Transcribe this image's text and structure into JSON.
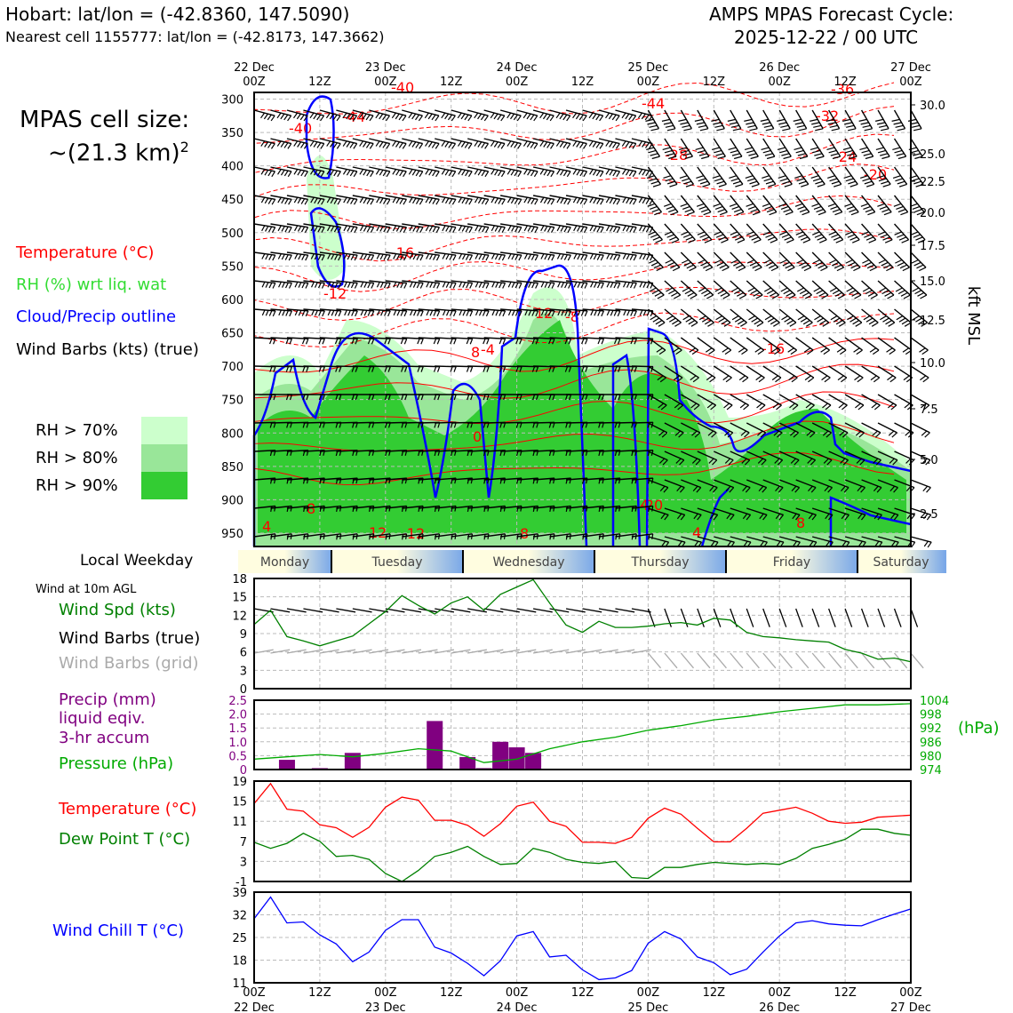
{
  "header": {
    "location": "Hobart: lat/lon = (-42.8360, 147.5090)",
    "nearest": "Nearest cell 1155777: lat/lon = (-42.8173, 147.3662)",
    "cycle_title": "AMPS MPAS Forecast Cycle:",
    "cycle_date": "2025-12-22 / 00 UTC"
  },
  "cell_size": {
    "line1": "MPAS cell size:",
    "line2": "~(21.3 km)",
    "sup": "2"
  },
  "upper_legend": {
    "temperature": "Temperature (°C)",
    "rh": "RH (%) wrt liq. wat",
    "cloud": "Cloud/Precip outline",
    "wind": "Wind Barbs (kts) (true)"
  },
  "rh_legend": [
    "RH > 70%",
    "RH > 80%",
    "RH > 90%"
  ],
  "colors": {
    "temperature": "#ff0000",
    "rh_label": "#33dd33",
    "cloud": "#0000ff",
    "rh70": "#ccffcc",
    "rh80": "#99e699",
    "rh90": "#33cc33",
    "precip": "#800080",
    "pressure": "#00aa00",
    "dewpoint": "#008000",
    "windchill": "#0000ff",
    "grid_barbs": "#aaaaaa"
  },
  "top_time_axis": [
    {
      "day": "22 Dec",
      "hour": "00Z"
    },
    {
      "day": "",
      "hour": "12Z"
    },
    {
      "day": "23 Dec",
      "hour": "00Z"
    },
    {
      "day": "",
      "hour": "12Z"
    },
    {
      "day": "24 Dec",
      "hour": "00Z"
    },
    {
      "day": "",
      "hour": "12Z"
    },
    {
      "day": "25 Dec",
      "hour": "00Z"
    },
    {
      "day": "",
      "hour": "12Z"
    },
    {
      "day": "26 Dec",
      "hour": "00Z"
    },
    {
      "day": "",
      "hour": "12Z"
    },
    {
      "day": "27 Dec",
      "hour": "00Z"
    }
  ],
  "pressure_levels": [
    "300",
    "350",
    "400",
    "450",
    "500",
    "550",
    "600",
    "650",
    "700",
    "750",
    "800",
    "850",
    "900",
    "950"
  ],
  "kft_ticks": [
    "30.0",
    "25.0",
    "22.5",
    "20.0",
    "17.5",
    "15.0",
    "12.5",
    "10.0",
    "7.5",
    "5.0",
    "2.5"
  ],
  "kft_label": "kft MSL",
  "weekday_label": "Local Weekday",
  "weekdays": [
    "Monday",
    "Tuesday",
    "Wednesday",
    "Thursday",
    "Friday",
    "Saturday"
  ],
  "panel_labels": {
    "wind_title": "Wind at 10m AGL",
    "wind_spd": "Wind Spd (kts)",
    "wind_true": "Wind Barbs (true)",
    "wind_grid": "Wind Barbs (grid)",
    "precip1": "Precip (mm)",
    "precip2": "liquid eqiv.",
    "precip3": "3-hr accum",
    "pressure": "Pressure (hPa)",
    "hpa": "(hPa)",
    "temp": "Temperature (°C)",
    "dew": "Dew Point T (°C)",
    "windchill": "Wind Chill T (°C)"
  },
  "contour_labels": [
    "-40",
    "-44",
    "-40",
    "-44",
    "-36",
    "-32",
    "-28",
    "-24",
    "-20",
    "-16",
    "-12",
    "-8",
    "-4",
    "0",
    "4",
    "8",
    "12",
    "-12",
    "-16",
    "-20",
    "4",
    "8",
    "8",
    "12",
    "8",
    "4"
  ],
  "bottom_time_axis": [
    {
      "hour": "00Z",
      "day": "22 Dec"
    },
    {
      "hour": "12Z",
      "day": ""
    },
    {
      "hour": "00Z",
      "day": "23 Dec"
    },
    {
      "hour": "12Z",
      "day": ""
    },
    {
      "hour": "00Z",
      "day": "24 Dec"
    },
    {
      "hour": "12Z",
      "day": ""
    },
    {
      "hour": "00Z",
      "day": "25 Dec"
    },
    {
      "hour": "12Z",
      "day": ""
    },
    {
      "hour": "00Z",
      "day": "26 Dec"
    },
    {
      "hour": "12Z",
      "day": ""
    },
    {
      "hour": "00Z",
      "day": "27 Dec"
    }
  ],
  "chart_data": [
    {
      "type": "line",
      "name": "wind_speed",
      "x_hours": [
        0,
        3,
        6,
        9,
        12,
        15,
        18,
        21,
        24,
        27,
        30,
        33,
        36,
        39,
        42,
        45,
        48,
        51,
        54,
        57,
        60,
        63,
        66,
        69,
        72,
        75,
        78,
        81,
        84,
        87,
        90,
        93,
        96,
        99,
        102,
        105,
        108,
        111,
        114,
        117,
        120
      ],
      "series": [
        {
          "name": "Wind Spd (kts)",
          "values": [
            10.5,
            12.8,
            8.5,
            7.8,
            7.0,
            7.8,
            8.6,
            10.6,
            12.6,
            15.2,
            13.6,
            12.2,
            14.0,
            15.0,
            12.8,
            15.4,
            16.6,
            17.8,
            14.0,
            10.4,
            9.2,
            11.0,
            10.0,
            10.0,
            10.2,
            10.6,
            10.8,
            10.4,
            11.5,
            11.2,
            9.2,
            8.5,
            8.3,
            8.0,
            7.8,
            7.6,
            6.4,
            5.8,
            4.8,
            5.0,
            4.4
          ]
        }
      ],
      "ylim": [
        0,
        18
      ],
      "yticks": [
        "0",
        "3",
        "6",
        "9",
        "12",
        "15",
        "18"
      ]
    },
    {
      "type": "bar",
      "name": "precip",
      "x_hours": [
        6,
        9,
        12,
        15,
        18,
        21,
        24,
        27,
        30,
        33,
        36,
        39,
        42,
        45,
        48,
        51,
        54,
        57,
        60,
        63,
        66,
        69,
        72,
        75,
        78,
        81,
        84,
        87,
        90,
        93,
        96,
        99,
        102,
        105,
        108,
        111,
        114
      ],
      "values": [
        0.35,
        0,
        0.05,
        0,
        0.6,
        0,
        0,
        0,
        0,
        1.75,
        0,
        0.45,
        0.05,
        1.0,
        0.8,
        0.6,
        0,
        0,
        0.02,
        0,
        0,
        0,
        0,
        0,
        0,
        0,
        0,
        0,
        0,
        0,
        0,
        0,
        0,
        0,
        0,
        0.02,
        0
      ],
      "ylim": [
        0,
        2.5
      ],
      "yticks": [
        "0",
        "0.5",
        "1.0",
        "1.5",
        "2.0",
        "2.5"
      ]
    },
    {
      "type": "line",
      "name": "pressure",
      "x_hours": [
        0,
        6,
        12,
        18,
        24,
        30,
        36,
        42,
        48,
        54,
        60,
        66,
        72,
        78,
        84,
        90,
        96,
        102,
        108,
        114,
        120
      ],
      "series": [
        {
          "name": "Pressure (hPa)",
          "values": [
            978.5,
            979.5,
            980.5,
            979.5,
            981,
            983,
            982,
            977,
            978.5,
            983,
            986,
            988,
            991,
            993,
            995.5,
            997,
            999,
            1000.5,
            1002,
            1002,
            1002.5
          ]
        }
      ],
      "ylim": [
        974,
        1004
      ],
      "yticks": [
        "974",
        "980",
        "986",
        "992",
        "998",
        "1004"
      ]
    },
    {
      "type": "line",
      "name": "temperature",
      "x_hours": [
        0,
        3,
        6,
        9,
        12,
        15,
        18,
        21,
        24,
        27,
        30,
        33,
        36,
        39,
        42,
        45,
        48,
        51,
        54,
        57,
        60,
        63,
        66,
        69,
        72,
        75,
        78,
        81,
        84,
        87,
        90,
        93,
        96,
        99,
        102,
        105,
        108,
        111,
        114,
        117,
        120
      ],
      "series": [
        {
          "name": "Temperature (°C)",
          "values": [
            14.5,
            18.5,
            13.4,
            13.0,
            10.3,
            9.7,
            7.8,
            9.8,
            13.8,
            15.8,
            15.2,
            11.2,
            11.2,
            10.2,
            8.0,
            10.5,
            14.0,
            14.8,
            11.0,
            10.0,
            6.8,
            6.8,
            6.6,
            7.8,
            11.6,
            13.6,
            12.4,
            9.6,
            6.9,
            6.9,
            9.6,
            12.6,
            13.2,
            13.8,
            12.6,
            11.0,
            10.6,
            10.8,
            11.8,
            12.0,
            12.2
          ]
        },
        {
          "name": "Dew Point T (°C)",
          "values": [
            6.8,
            5.6,
            6.6,
            8.6,
            7.0,
            4.0,
            4.2,
            3.4,
            0.6,
            -1.0,
            1.2,
            4.0,
            4.8,
            6.0,
            4.0,
            2.4,
            2.6,
            5.6,
            4.8,
            3.4,
            2.8,
            2.6,
            3.0,
            -0.2,
            -0.4,
            1.8,
            1.8,
            2.4,
            2.8,
            2.6,
            2.4,
            2.6,
            2.4,
            3.6,
            5.6,
            6.4,
            7.4,
            9.4,
            9.4,
            8.6,
            8.2
          ]
        }
      ],
      "ylim": [
        -1,
        19
      ],
      "yticks": [
        "-1",
        "3",
        "7",
        "11",
        "15",
        "19"
      ]
    },
    {
      "type": "line",
      "name": "wind_chill",
      "x_hours": [
        0,
        3,
        6,
        9,
        12,
        15,
        18,
        21,
        24,
        27,
        30,
        33,
        36,
        39,
        42,
        45,
        48,
        51,
        54,
        57,
        60,
        63,
        66,
        69,
        72,
        75,
        78,
        81,
        84,
        87,
        90,
        93,
        96,
        99,
        102,
        105,
        108,
        111,
        114,
        117,
        120
      ],
      "series": [
        {
          "name": "Wind Chill T (°C)",
          "values": [
            30.8,
            37.5,
            29.5,
            29.8,
            25.8,
            23.0,
            17.5,
            20.5,
            27.2,
            30.5,
            30.5,
            22.0,
            20.2,
            17.0,
            13.2,
            17.8,
            25.5,
            26.8,
            19.0,
            19.5,
            15.0,
            12.0,
            12.5,
            14.8,
            23.2,
            26.8,
            24.5,
            19.0,
            17.2,
            13.5,
            15.2,
            20.5,
            25.5,
            29.5,
            30.2,
            29.2,
            28.8,
            28.6,
            30.5,
            32.2,
            33.8
          ]
        }
      ],
      "ylim": [
        11,
        39
      ],
      "yticks": [
        "11",
        "18",
        "25",
        "32",
        "39"
      ]
    }
  ]
}
